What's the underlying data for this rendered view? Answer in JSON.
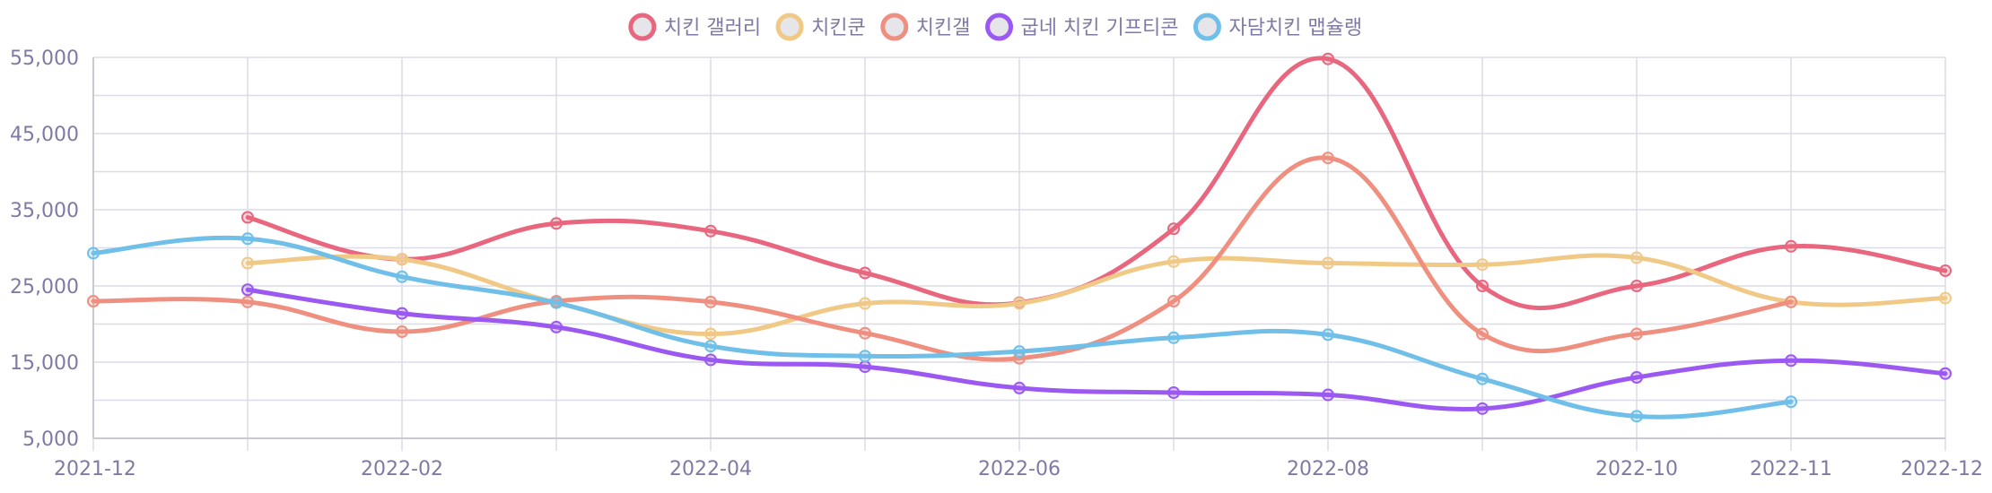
{
  "chart_data": {
    "type": "line",
    "curve": "smooth",
    "legend": {
      "position": "top-center"
    },
    "grid": true,
    "x": [
      "2021-12",
      "2022-01",
      "2022-02",
      "2022-03",
      "2022-04",
      "2022-05",
      "2022-06",
      "2022-07",
      "2022-08",
      "2022-09",
      "2022-10",
      "2022-11",
      "2022-12"
    ],
    "x_tick_labels": [
      "2021-12",
      "",
      "2022-02",
      "",
      "2022-04",
      "",
      "2022-06",
      "",
      "2022-08",
      "",
      "2022-10",
      "2022-11",
      "2022-12"
    ],
    "y_ticks": [
      "55,000",
      "45,000",
      "35,000",
      "25,000",
      "15,000",
      "5,000"
    ],
    "ylim": [
      5000,
      55000
    ],
    "series": [
      {
        "name": "치킨 갤러리",
        "color": "#e8677f",
        "values": [
          null,
          34000,
          28500,
          33200,
          32200,
          26700,
          22800,
          32500,
          54800,
          25000,
          25000,
          30200,
          27000
        ]
      },
      {
        "name": "치킨쿤",
        "color": "#f0c987",
        "values": [
          null,
          28000,
          28500,
          22800,
          18700,
          22700,
          22700,
          28200,
          28000,
          27800,
          28700,
          22900,
          23400
        ]
      },
      {
        "name": "치킨갤",
        "color": "#ef8f80",
        "values": [
          23000,
          22900,
          19000,
          23000,
          22900,
          18800,
          15500,
          23000,
          41800,
          18700,
          18700,
          22900,
          null
        ]
      },
      {
        "name": "굽네 치킨 기프티콘",
        "color": "#9b59f2",
        "values": [
          null,
          24500,
          21400,
          19600,
          15300,
          14400,
          11600,
          11000,
          10700,
          8900,
          13000,
          15200,
          13500
        ]
      },
      {
        "name": "자담치킨 맵슐랭",
        "color": "#6fbfe8",
        "values": [
          29300,
          31200,
          26200,
          22800,
          17100,
          15800,
          16400,
          18200,
          18600,
          12800,
          7900,
          9800,
          null
        ]
      }
    ]
  }
}
